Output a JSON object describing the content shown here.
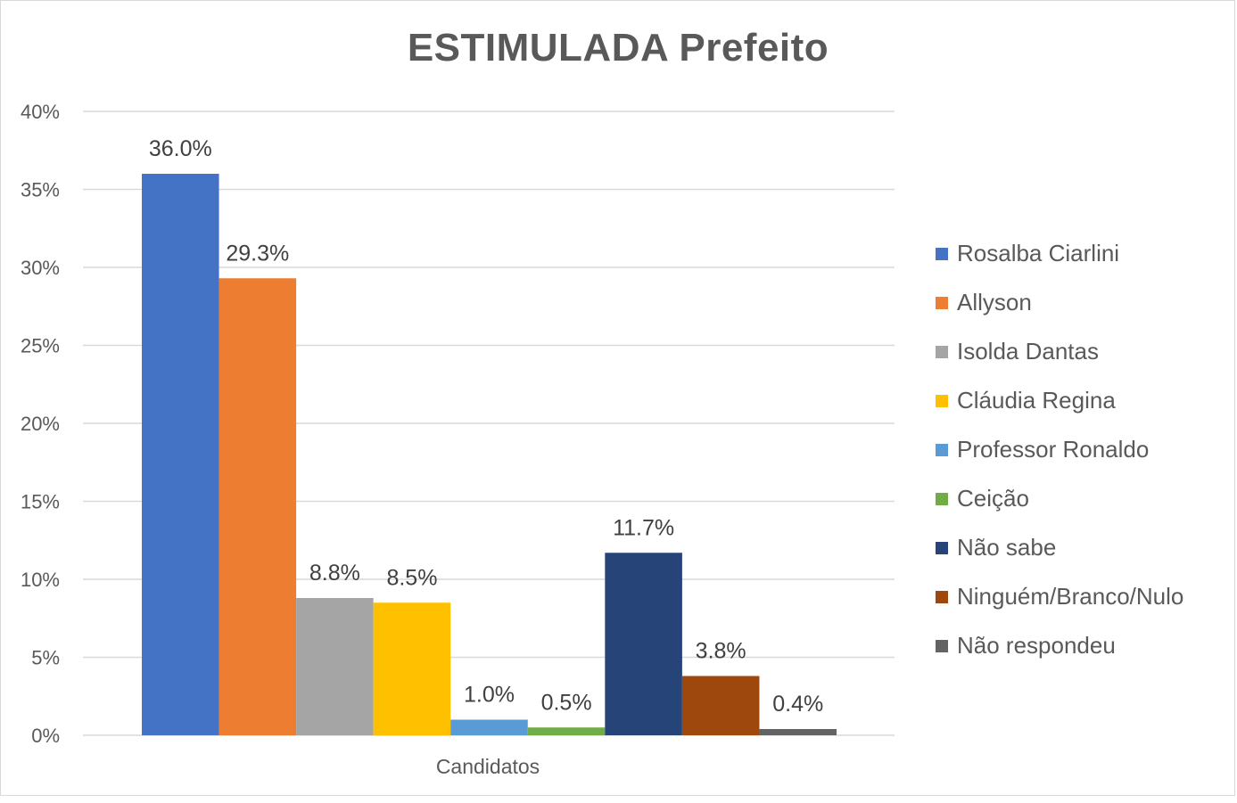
{
  "chart_data": {
    "type": "bar",
    "title": "ESTIMULADA Prefeito",
    "xlabel": "Candidatos",
    "ylabel": "",
    "ylim": [
      0,
      40
    ],
    "y_ticks": [
      "0%",
      "5%",
      "10%",
      "15%",
      "20%",
      "25%",
      "30%",
      "35%",
      "40%"
    ],
    "y_tick_values": [
      0,
      5,
      10,
      15,
      20,
      25,
      30,
      35,
      40
    ],
    "categories": [
      "Candidatos"
    ],
    "grid": true,
    "legend_position": "right",
    "series": [
      {
        "name": "Rosalba Ciarlini",
        "values": [
          36.0
        ],
        "label": "36.0%",
        "color": "#4472C4"
      },
      {
        "name": "Allyson",
        "values": [
          29.3
        ],
        "label": "29.3%",
        "color": "#ED7D31"
      },
      {
        "name": "Isolda Dantas",
        "values": [
          8.8
        ],
        "label": "8.8%",
        "color": "#A5A5A5"
      },
      {
        "name": "Cláudia Regina",
        "values": [
          8.5
        ],
        "label": "8.5%",
        "color": "#FFC000"
      },
      {
        "name": "Professor Ronaldo",
        "values": [
          1.0
        ],
        "label": "1.0%",
        "color": "#5B9BD5"
      },
      {
        "name": "Ceição",
        "values": [
          0.5
        ],
        "label": "0.5%",
        "color": "#70AD47"
      },
      {
        "name": "Não sabe",
        "values": [
          11.7
        ],
        "label": "11.7%",
        "color": "#264478"
      },
      {
        "name": "Ninguém/Branco/Nulo",
        "values": [
          3.8
        ],
        "label": "3.8%",
        "color": "#9E480E"
      },
      {
        "name": "Não respondeu",
        "values": [
          0.4
        ],
        "label": "0.4%",
        "color": "#636363"
      }
    ]
  }
}
